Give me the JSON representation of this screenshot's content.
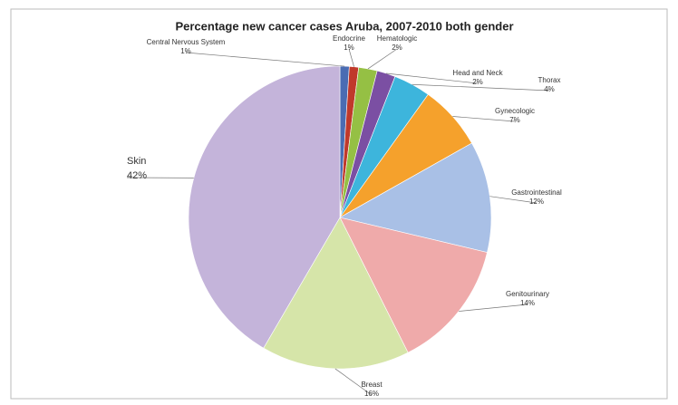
{
  "chart_data": {
    "type": "pie",
    "title": "Percentage new cancer cases Aruba, 2007-2010 both gender",
    "categories": [
      "Central Nervous System",
      "Endocrine",
      "Hematologic",
      "Head and Neck",
      "Thorax",
      "Gynecologic",
      "Gastrointestinal",
      "Genitourinary",
      "Breast",
      "Skin"
    ],
    "values": [
      1,
      1,
      2,
      2,
      4,
      7,
      12,
      14,
      16,
      42
    ],
    "value_labels": [
      "1%",
      "1%",
      "2%",
      "2%",
      "4%",
      "7%",
      "12%",
      "14%",
      "16%",
      "42%"
    ],
    "colors": [
      "#4a6cb3",
      "#c0392b",
      "#95c044",
      "#7b4fa3",
      "#3db5dc",
      "#f5a12c",
      "#a9c0e6",
      "#efaaaa",
      "#d6e5a9",
      "#c4b4da"
    ]
  }
}
